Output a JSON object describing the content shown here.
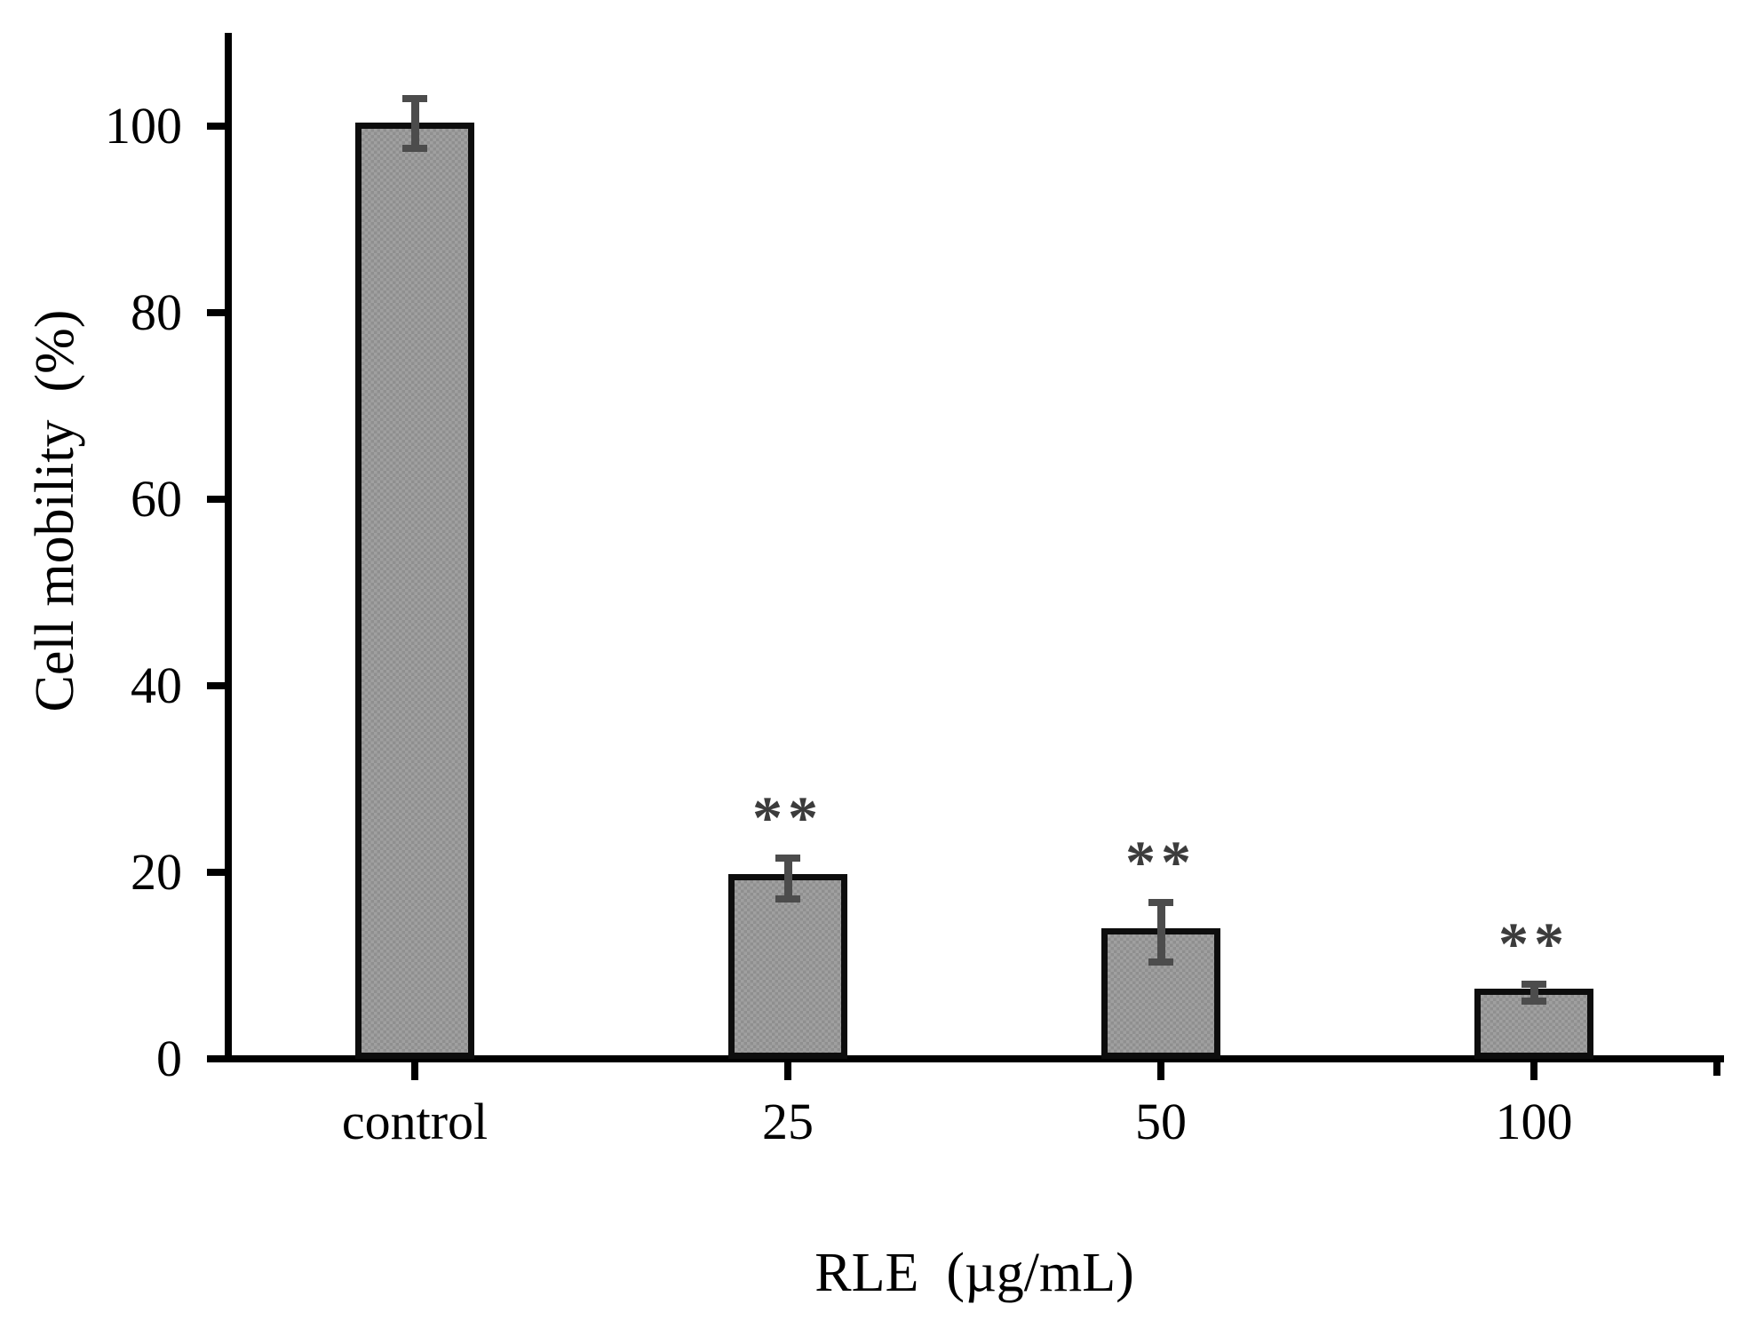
{
  "figure": {
    "background": "#ffffff"
  },
  "chart_data": {
    "type": "bar",
    "title": "",
    "xlabel": "RLE  (µg/mL)",
    "ylabel": "Cell mobility  (%)",
    "categories": [
      "control",
      "25",
      "50",
      "100"
    ],
    "values": [
      100,
      19.4,
      13.6,
      7.1
    ],
    "errors_plus": [
      3.0,
      2.1,
      3.2,
      0.9
    ],
    "errors_minus": [
      2.4,
      2.3,
      3.2,
      0.9
    ],
    "significance": [
      "",
      "**",
      "**",
      "**"
    ],
    "ylim": [
      0,
      110
    ],
    "yticks": [
      0,
      20,
      40,
      60,
      80,
      100
    ],
    "xlim_categories": true,
    "grid": false,
    "legend": null,
    "error_bar_style": "capped-I-beam",
    "colors": {
      "bar_fill": "#9a9a9a",
      "bar_fill_texture_dark": "#8f8f8f",
      "bar_fill_texture_light": "#a0a0a0",
      "bar_border": "#0d0d0d",
      "error_bar": "#4c4c4c",
      "significance": "#3c3c3c",
      "axis": "#000000",
      "text": "#000000"
    }
  }
}
